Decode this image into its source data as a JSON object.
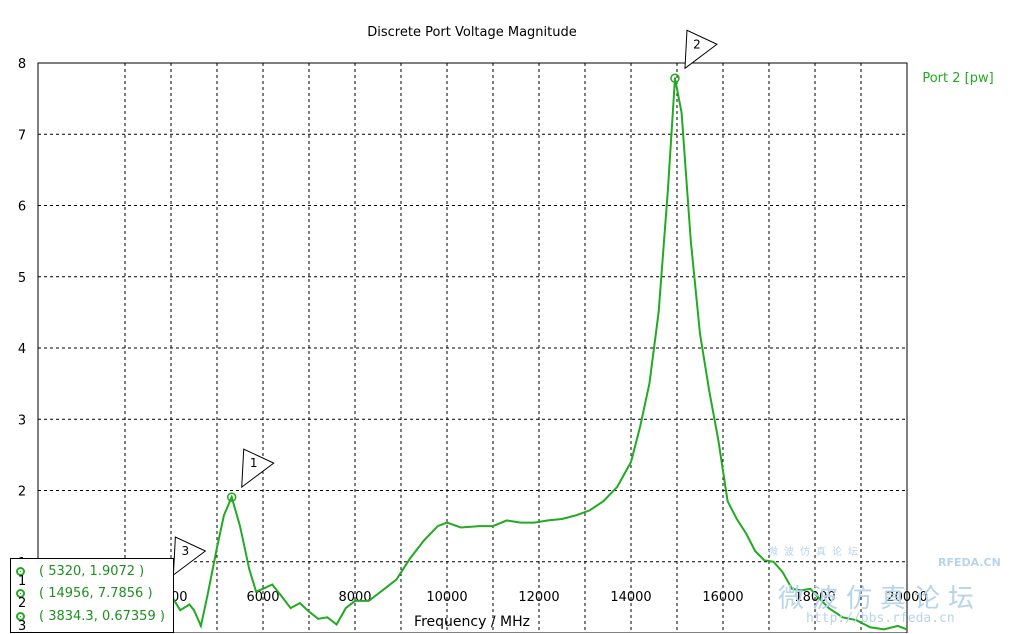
{
  "chart_data": {
    "type": "line",
    "title": "Discrete Port Voltage Magnitude",
    "xlabel": "Frequency / MHz",
    "ylabel": "",
    "xlim": [
      2000,
      20000
    ],
    "ylim": [
      0,
      8
    ],
    "xticks": [
      4000,
      6000,
      8000,
      10000,
      12000,
      14000,
      16000,
      18000,
      20000
    ],
    "yticks": [
      0,
      1,
      2,
      3,
      4,
      5,
      6,
      7,
      8
    ],
    "grid": true,
    "legend_position": "top-right",
    "series": [
      {
        "name": "Port 2 [pw]",
        "color": "#22aa22",
        "x": [
          3000,
          3300,
          3600,
          3834.3,
          4050,
          4200,
          4400,
          4500,
          4650,
          4800,
          5000,
          5150,
          5320,
          5500,
          5700,
          5850,
          6000,
          6200,
          6400,
          6600,
          6800,
          7000,
          7200,
          7400,
          7600,
          7800,
          8000,
          8300,
          8600,
          8900,
          9200,
          9500,
          9800,
          10000,
          10300,
          10700,
          11000,
          11300,
          11600,
          11900,
          12200,
          12500,
          12800,
          13100,
          13400,
          13700,
          14000,
          14200,
          14400,
          14600,
          14800,
          14956,
          15100,
          15300,
          15500,
          15700,
          15900,
          16100,
          16300,
          16500,
          16700,
          16900,
          17100,
          17300,
          17500,
          17700,
          17900,
          18100,
          18300,
          18600,
          18900,
          19200,
          19500,
          19800,
          20000
        ],
        "y": [
          0.31,
          0.42,
          0.55,
          0.67359,
          0.48,
          0.32,
          0.4,
          0.32,
          0.1,
          0.55,
          1.2,
          1.65,
          1.9072,
          1.5,
          0.9,
          0.58,
          0.62,
          0.68,
          0.52,
          0.35,
          0.42,
          0.3,
          0.2,
          0.22,
          0.12,
          0.35,
          0.45,
          0.45,
          0.6,
          0.75,
          1.05,
          1.3,
          1.5,
          1.55,
          1.48,
          1.5,
          1.5,
          1.58,
          1.55,
          1.55,
          1.58,
          1.6,
          1.65,
          1.72,
          1.85,
          2.05,
          2.4,
          2.9,
          3.5,
          4.5,
          6.2,
          7.7856,
          7.3,
          5.5,
          4.2,
          3.4,
          2.7,
          1.85,
          1.6,
          1.4,
          1.15,
          1.02,
          1.0,
          0.85,
          0.62,
          0.6,
          0.62,
          0.48,
          0.35,
          0.22,
          0.18,
          0.08,
          0.05,
          0.1,
          0.05
        ]
      }
    ],
    "markers": [
      {
        "id": "1",
        "x": 5320,
        "y": 1.9072,
        "label": "( 5320, 1.9072 )"
      },
      {
        "id": "2",
        "x": 14956,
        "y": 7.7856,
        "label": "( 14956, 7.7856 )"
      },
      {
        "id": "3",
        "x": 3834.3,
        "y": 0.67359,
        "label": "( 3834.3, 0.67359 )"
      }
    ]
  },
  "watermark": {
    "brand": "RFEDA.CN",
    "small_text": "微波仿真论坛",
    "cn_text": "微波仿真论坛",
    "url": "http://bbs.rfeda.cn"
  }
}
